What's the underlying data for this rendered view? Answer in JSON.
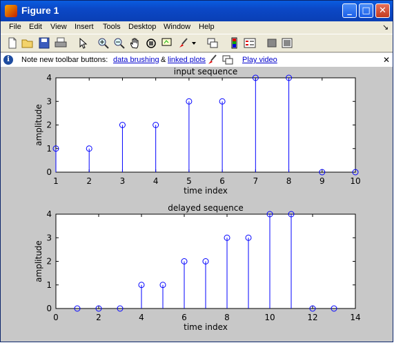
{
  "window": {
    "title": "Figure 1"
  },
  "titlebar_buttons": {
    "minimize": "_",
    "maximize": "□",
    "close": "✕"
  },
  "menu": {
    "items": [
      "File",
      "Edit",
      "View",
      "Insert",
      "Tools",
      "Desktop",
      "Window",
      "Help"
    ],
    "corner": "↘"
  },
  "toolbar": {
    "icons": [
      "new-figure-icon",
      "open-file-icon",
      "save-icon",
      "print-icon",
      "edit-plot-arrow-icon",
      "zoom-in-icon",
      "zoom-out-icon",
      "pan-hand-icon",
      "rotate-3d-icon",
      "data-cursor-icon",
      "brush-icon",
      "brush-dropdown-icon",
      "link-plot-icon",
      "colorbar-icon",
      "legend-icon",
      "hide-plot-tools-icon",
      "show-plot-tools-icon"
    ]
  },
  "infobar": {
    "text_before": "Note new toolbar buttons:",
    "link_brushing": "data brushing",
    "amp": "&",
    "link_linked": "linked plots",
    "link_video": "Play video",
    "close": "✕"
  },
  "colors": {
    "stem": "#0000ff",
    "axes": "#000000",
    "background": "#c8c8c8"
  },
  "chart_data": [
    {
      "type": "stem",
      "title": "input sequence",
      "xlabel": "time index",
      "ylabel": "amplitude",
      "x": [
        1,
        2,
        3,
        4,
        5,
        6,
        7,
        8,
        9,
        10
      ],
      "y": [
        1,
        1,
        2,
        2,
        3,
        3,
        4,
        4,
        0,
        0
      ],
      "xlim": [
        1,
        10
      ],
      "ylim": [
        0,
        4
      ],
      "xticks": [
        1,
        2,
        3,
        4,
        5,
        6,
        7,
        8,
        9,
        10
      ],
      "yticks": [
        0,
        1,
        2,
        3,
        4
      ]
    },
    {
      "type": "stem",
      "title": "delayed sequence",
      "xlabel": "time index",
      "ylabel": "amplitude",
      "x": [
        1,
        2,
        3,
        4,
        5,
        6,
        7,
        8,
        9,
        10,
        11,
        12,
        13
      ],
      "y": [
        0,
        0,
        0,
        1,
        1,
        2,
        2,
        3,
        3,
        4,
        4,
        0,
        0
      ],
      "xlim": [
        0,
        14
      ],
      "ylim": [
        0,
        4
      ],
      "xticks": [
        0,
        2,
        4,
        6,
        8,
        10,
        12,
        14
      ],
      "yticks": [
        0,
        1,
        2,
        3,
        4
      ]
    }
  ]
}
